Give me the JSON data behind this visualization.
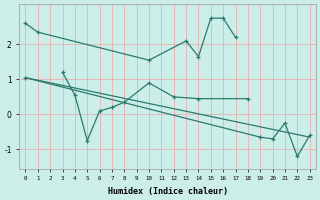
{
  "xlabel": "Humidex (Indice chaleur)",
  "background_color": "#cceee8",
  "grid_color": "#e8b0b0",
  "line_color": "#2a7a6e",
  "xlim": [
    -0.5,
    23.5
  ],
  "ylim": [
    -1.55,
    3.15
  ],
  "xticks": [
    0,
    1,
    2,
    3,
    4,
    5,
    6,
    7,
    8,
    9,
    10,
    11,
    12,
    13,
    14,
    15,
    16,
    17,
    18,
    19,
    20,
    21,
    22,
    23
  ],
  "yticks": [
    -1,
    0,
    1,
    2
  ],
  "series": [
    {
      "x": [
        0,
        1,
        10,
        13,
        14,
        15,
        16,
        17
      ],
      "y": [
        2.6,
        2.35,
        1.55,
        2.1,
        1.65,
        2.75,
        2.75,
        2.2
      ]
    },
    {
      "x": [
        3,
        4,
        5,
        6,
        7,
        8,
        10,
        12,
        14,
        18
      ],
      "y": [
        1.2,
        0.55,
        -0.75,
        0.1,
        0.2,
        0.35,
        0.9,
        0.5,
        0.45,
        0.45
      ]
    },
    {
      "x": [
        0,
        19,
        20,
        21,
        22,
        23
      ],
      "y": [
        1.05,
        -0.65,
        -0.7,
        -0.25,
        -1.2,
        -0.6
      ]
    },
    {
      "x": [
        0,
        23
      ],
      "y": [
        1.05,
        -0.65
      ],
      "no_markers": true
    }
  ]
}
